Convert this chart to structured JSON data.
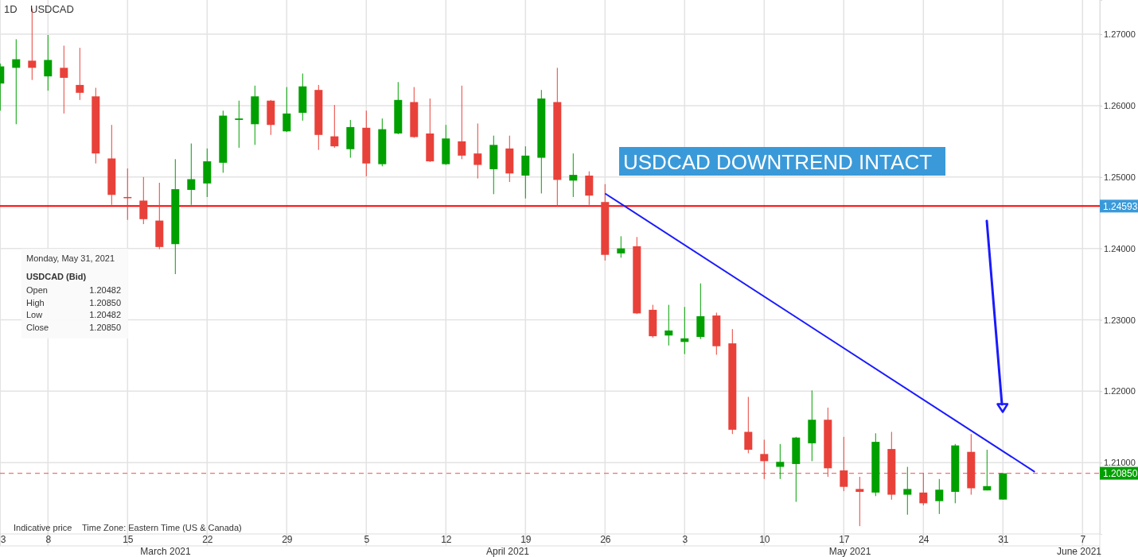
{
  "chart_data": {
    "type": "candlestick",
    "title": "1D",
    "subtitle": "USDCAD",
    "categories": [
      "3",
      null,
      null,
      "8",
      null,
      null,
      null,
      null,
      "15",
      null,
      null,
      null,
      null,
      "22",
      null,
      null,
      null,
      null,
      "29",
      null,
      null,
      null,
      null,
      "5",
      null,
      null,
      null,
      null,
      "12",
      null,
      null,
      null,
      null,
      "19",
      null,
      null,
      null,
      null,
      "26",
      null,
      null,
      null,
      null,
      "3",
      null,
      null,
      null,
      null,
      "10",
      null,
      null,
      null,
      null,
      "17",
      null,
      null,
      null,
      null,
      "24",
      null,
      null,
      null,
      null,
      "31",
      null,
      null,
      null,
      null,
      "7"
    ],
    "ohlc": [
      [
        1.2631,
        1.2659,
        1.2593,
        1.2655
      ],
      [
        1.2653,
        1.2693,
        1.2574,
        1.2665
      ],
      [
        1.2663,
        1.2736,
        1.2636,
        1.2653
      ],
      [
        1.2641,
        1.2699,
        1.2621,
        1.2664
      ],
      [
        1.2653,
        1.2684,
        1.2589,
        1.2639
      ],
      [
        1.2629,
        1.2681,
        1.2608,
        1.2618
      ],
      [
        1.2613,
        1.2625,
        1.2519,
        1.2533
      ],
      [
        1.2526,
        1.2573,
        1.2461,
        1.2475
      ],
      [
        1.2472,
        1.2512,
        1.244,
        1.2471
      ],
      [
        1.2467,
        1.25,
        1.2434,
        1.2441
      ],
      [
        1.2439,
        1.2492,
        1.2399,
        1.2402
      ],
      [
        1.2406,
        1.2525,
        1.2364,
        1.2483
      ],
      [
        1.2482,
        1.2547,
        1.2461,
        1.2497
      ],
      [
        1.2491,
        1.254,
        1.2472,
        1.2522
      ],
      [
        1.252,
        1.2593,
        1.2506,
        1.2586
      ],
      [
        1.258,
        1.2607,
        1.2541,
        1.2582
      ],
      [
        1.2574,
        1.2628,
        1.2545,
        1.2613
      ],
      [
        1.2607,
        1.2608,
        1.2559,
        1.2573
      ],
      [
        1.2564,
        1.2626,
        1.2563,
        1.2589
      ],
      [
        1.259,
        1.2645,
        1.2579,
        1.2627
      ],
      [
        1.2622,
        1.2629,
        1.2538,
        1.2559
      ],
      [
        1.2557,
        1.2601,
        1.2541,
        1.2543
      ],
      [
        1.2539,
        1.258,
        1.2527,
        1.257
      ],
      [
        1.2569,
        1.2593,
        1.2501,
        1.2519
      ],
      [
        1.2518,
        1.2582,
        1.2515,
        1.2567
      ],
      [
        1.2561,
        1.2633,
        1.256,
        1.2608
      ],
      [
        1.2605,
        1.2626,
        1.2555,
        1.2556
      ],
      [
        1.2561,
        1.261,
        1.2521,
        1.2522
      ],
      [
        1.2518,
        1.2573,
        1.2517,
        1.2554
      ],
      [
        1.255,
        1.2628,
        1.2525,
        1.253
      ],
      [
        1.2533,
        1.2575,
        1.2498,
        1.2517
      ],
      [
        1.2511,
        1.2558,
        1.2476,
        1.2545
      ],
      [
        1.254,
        1.2558,
        1.2493,
        1.2505
      ],
      [
        1.2502,
        1.2543,
        1.247,
        1.253
      ],
      [
        1.2527,
        1.2622,
        1.2477,
        1.261
      ],
      [
        1.2605,
        1.2653,
        1.2459,
        1.2496
      ],
      [
        1.2495,
        1.2533,
        1.2472,
        1.2503
      ],
      [
        1.2502,
        1.2508,
        1.2461,
        1.2474
      ],
      [
        1.2465,
        1.249,
        1.2383,
        1.2391
      ],
      [
        1.2393,
        1.2417,
        1.2387,
        1.24
      ],
      [
        1.2403,
        1.2416,
        1.2308,
        1.2309
      ],
      [
        1.2314,
        1.2321,
        1.2275,
        1.2277
      ],
      [
        1.2278,
        1.2321,
        1.2264,
        1.2285
      ],
      [
        1.2269,
        1.2318,
        1.2252,
        1.2274
      ],
      [
        1.2276,
        1.2351,
        1.2273,
        1.2305
      ],
      [
        1.2306,
        1.231,
        1.2251,
        1.2263
      ],
      [
        1.2267,
        1.2287,
        1.214,
        1.2146
      ],
      [
        1.2143,
        1.2192,
        1.2113,
        1.2118
      ],
      [
        1.2112,
        1.2132,
        1.2077,
        1.2102
      ],
      [
        1.2094,
        1.2126,
        1.2077,
        1.2101
      ],
      [
        1.2098,
        1.2136,
        1.2045,
        1.2135
      ],
      [
        1.2127,
        1.2201,
        1.2102,
        1.216
      ],
      [
        1.216,
        1.2177,
        1.208,
        1.2092
      ],
      [
        1.2089,
        1.2136,
        1.206,
        1.2066
      ],
      [
        1.2063,
        1.208,
        1.2011,
        1.2059
      ],
      [
        1.2058,
        1.2141,
        1.2053,
        1.2129
      ],
      [
        1.2119,
        1.2143,
        1.2048,
        1.2055
      ],
      [
        1.2055,
        1.2094,
        1.2027,
        1.2063
      ],
      [
        1.2058,
        1.2085,
        1.204,
        1.2043
      ],
      [
        1.2046,
        1.2077,
        1.2028,
        1.2062
      ],
      [
        1.2059,
        1.2126,
        1.2043,
        1.2124
      ],
      [
        1.2115,
        1.214,
        1.2055,
        1.2064
      ],
      [
        1.2061,
        1.2118,
        1.2061,
        1.2067
      ],
      [
        1.20482,
        1.2085,
        1.20482,
        1.2085
      ],
      null,
      null,
      null,
      null,
      null
    ],
    "colors": [
      "#00a000",
      "#00a000",
      "#e8413a",
      "#00a000",
      "#e8413a",
      "#e8413a",
      "#e8413a",
      "#e8413a",
      "#e8413a",
      "#e8413a",
      "#e8413a",
      "#00a000",
      "#00a000",
      "#00a000",
      "#00a000",
      "#00a000",
      "#00a000",
      "#e8413a",
      "#00a000",
      "#00a000",
      "#e8413a",
      "#e8413a",
      "#00a000",
      "#e8413a",
      "#00a000",
      "#00a000",
      "#e8413a",
      "#e8413a",
      "#00a000",
      "#e8413a",
      "#e8413a",
      "#00a000",
      "#e8413a",
      "#00a000",
      "#00a000",
      "#e8413a",
      "#00a000",
      "#e8413a",
      "#e8413a",
      "#00a000",
      "#e8413a",
      "#e8413a",
      "#00a000",
      "#00a000",
      "#00a000",
      "#e8413a",
      "#e8413a",
      "#e8413a",
      "#e8413a",
      "#00a000",
      "#00a000",
      "#00a000",
      "#e8413a",
      "#e8413a",
      "#e8413a",
      "#00a000",
      "#e8413a",
      "#00a000",
      "#e8413a",
      "#00a000",
      "#00a000",
      "#e8413a",
      "#00a000",
      "#00a000",
      null,
      null,
      null,
      null,
      null
    ],
    "series": [
      {
        "type": "line",
        "color": "#1a1aff",
        "values": [
          null,
          null,
          null,
          null,
          null,
          null,
          null,
          null,
          null,
          null,
          null,
          null,
          null,
          null,
          null,
          null,
          null,
          null,
          null,
          null,
          null,
          null,
          null,
          null,
          null,
          null,
          null,
          null,
          null,
          null,
          null,
          null,
          null,
          null,
          null,
          null,
          null,
          null,
          1.2477,
          null,
          null,
          null,
          null,
          null,
          null,
          null,
          null,
          null,
          null,
          null,
          null,
          null,
          null,
          null,
          null,
          null,
          null,
          null,
          null,
          null,
          null,
          null,
          null,
          null,
          null,
          1.2087,
          null,
          null,
          null
        ]
      }
    ],
    "ref_lines": [
      {
        "axis": "y",
        "value": 1.24593,
        "label": "1.24593",
        "color": "#ff0000",
        "line_style": "solid"
      },
      {
        "axis": "y",
        "value": 1.2085,
        "label": "1.20850",
        "color": "#f07070",
        "line_style": "dashed"
      }
    ],
    "ylim": [
      1.2,
      1.2748
    ],
    "yticks": [
      {
        "value": 1.21,
        "label": "1.21000"
      },
      {
        "value": 1.22,
        "label": "1.22000"
      },
      {
        "value": 1.23,
        "label": "1.23000"
      },
      {
        "value": 1.24,
        "label": "1.24000"
      },
      {
        "value": 1.25,
        "label": "1.25000"
      },
      {
        "value": 1.26,
        "label": "1.26000"
      },
      {
        "value": 1.27,
        "label": "1.27000"
      }
    ],
    "grid": true,
    "annotations": [
      "USDCAD DOWNTREND INTACT",
      "Monday, May 31, 2021",
      "USDCAD (Bid)",
      "Open",
      "1.20482",
      "High",
      "1.20850",
      "Low",
      "1.20482",
      "Close",
      "1.20850",
      "Indicative price",
      "Time Zone: Eastern Time (US & Canada)",
      "March 2021",
      "April 2021",
      "May 2021",
      "June 2021"
    ]
  }
}
